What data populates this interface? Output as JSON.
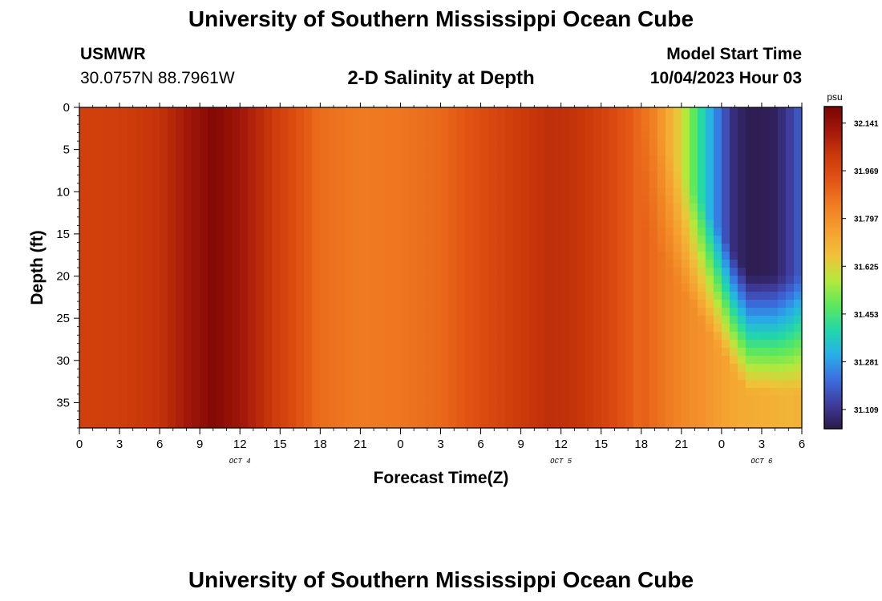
{
  "header": {
    "title": "University of Southern Mississippi Ocean Cube",
    "station_id": "USMWR",
    "coordinates": "30.0757N  88.7961W",
    "model_start_label": "Model Start Time",
    "model_start_value": "10/04/2023 Hour 03"
  },
  "footer": {
    "title": "University of Southern Mississippi Ocean Cube"
  },
  "chart_data": {
    "type": "heatmap",
    "title": "2-D Salinity at Depth",
    "xlabel": "Forecast Time(Z)",
    "ylabel": "Depth (ft)",
    "x_range_hours": [
      0,
      54
    ],
    "x_tick_labels": [
      "0",
      "3",
      "6",
      "9",
      "12",
      "15",
      "18",
      "21",
      "0",
      "3",
      "6",
      "9",
      "12",
      "15",
      "18",
      "21",
      "0",
      "3",
      "6"
    ],
    "date_labels": [
      {
        "label": "OCT 4",
        "hour": 12
      },
      {
        "label": "OCT 5",
        "hour": 36
      },
      {
        "label": "OCT 6",
        "hour": 51
      }
    ],
    "y_range": [
      0,
      38
    ],
    "y_ticks": [
      0,
      5,
      10,
      15,
      20,
      25,
      30,
      35
    ],
    "y_reversed": true,
    "colorbar": {
      "unit": "psu",
      "min": 31.04,
      "max": 32.2,
      "tick_values": [
        32.141,
        31.969,
        31.797,
        31.625,
        31.453,
        31.281,
        31.109
      ],
      "tick_labels": [
        "32.141",
        "31.969",
        "31.797",
        "31.625",
        "31.453",
        "31.281",
        "31.109"
      ],
      "colors": [
        "#2c1a4a",
        "#3f3d9e",
        "#3b6fe0",
        "#27b0e8",
        "#22d8a8",
        "#5fe85a",
        "#b6e83c",
        "#f0c13a",
        "#f5a030",
        "#f07e22",
        "#e35514",
        "#cc3a0a",
        "#a4180a",
        "#7a0403"
      ]
    },
    "surface_salinity_profile": {
      "hours": [
        0,
        3,
        6,
        8,
        10,
        12,
        14,
        16,
        18,
        21,
        24,
        27,
        30,
        33,
        35,
        37,
        39,
        41,
        43,
        44,
        45,
        46,
        47,
        48,
        49,
        50,
        51,
        52,
        53,
        54
      ],
      "values": [
        32.0,
        32.01,
        32.04,
        32.11,
        32.18,
        32.12,
        32.04,
        31.96,
        31.88,
        31.85,
        31.86,
        31.89,
        31.96,
        32.02,
        32.05,
        32.04,
        32.0,
        31.93,
        31.83,
        31.73,
        31.62,
        31.47,
        31.33,
        31.2,
        31.08,
        31.05,
        31.05,
        31.06,
        31.12,
        31.2
      ]
    },
    "deep_salinity_profile": {
      "depth_ft": 38,
      "hours": [
        0,
        3,
        6,
        8,
        10,
        12,
        14,
        16,
        18,
        21,
        24,
        27,
        30,
        33,
        35,
        37,
        39,
        41,
        43,
        45,
        47,
        49,
        51,
        53,
        54
      ],
      "values": [
        32.0,
        32.01,
        32.04,
        32.11,
        32.18,
        32.12,
        32.04,
        31.96,
        31.88,
        31.85,
        31.86,
        31.89,
        31.96,
        32.02,
        32.05,
        32.04,
        32.0,
        31.95,
        31.88,
        31.82,
        31.78,
        31.73,
        31.72,
        31.7,
        31.71
      ]
    },
    "low_salinity_plume": {
      "start_hour": 50,
      "end_hour": 54,
      "bottom_depth_ft": 20,
      "value": 31.05
    }
  }
}
